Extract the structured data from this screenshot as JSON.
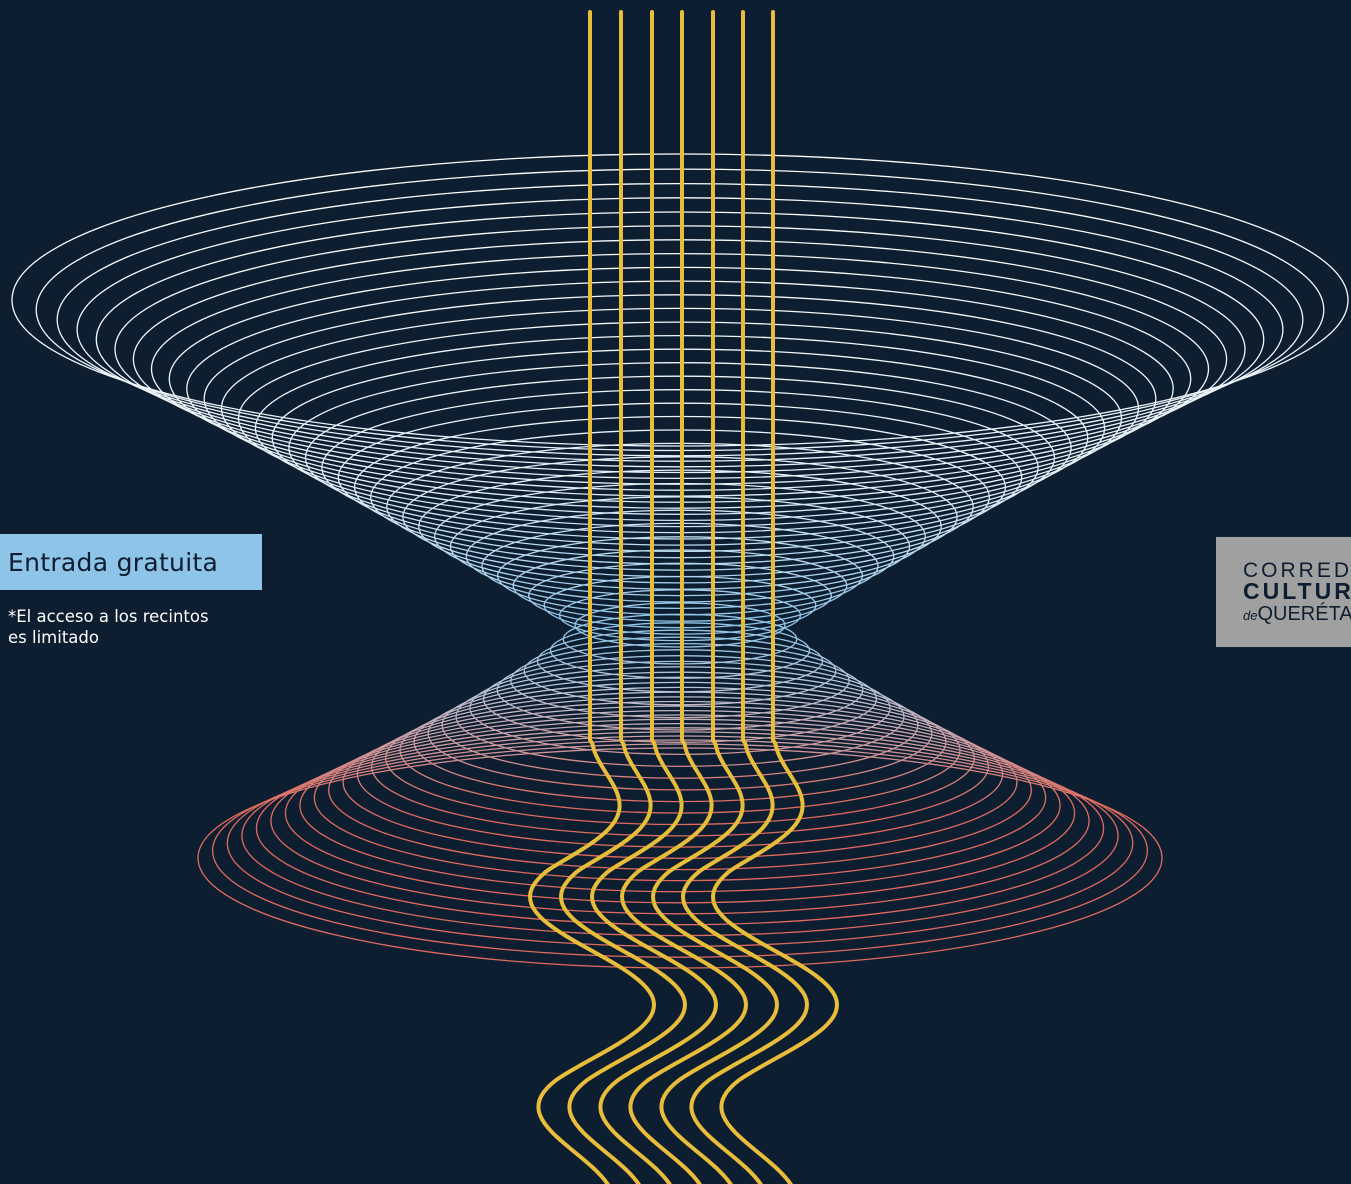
{
  "colors": {
    "background": "#0d1e30",
    "strand": "#e8bd3a",
    "ring_top": "#ffffff",
    "ring_mid": "#8ec4e8",
    "ring_bottom": "#e06a5e",
    "badge": "#8ec4e8",
    "logo_bg": "#a0a0a0"
  },
  "badge": {
    "label": "Entrada gratuita"
  },
  "note": {
    "line1": "*El acceso a los recintos",
    "line2": "es limitado"
  },
  "logo": {
    "line1": "CORREDOR",
    "line2": "CULTURAL",
    "line3_prefix": "de",
    "line3": "QUERÉTARO"
  }
}
